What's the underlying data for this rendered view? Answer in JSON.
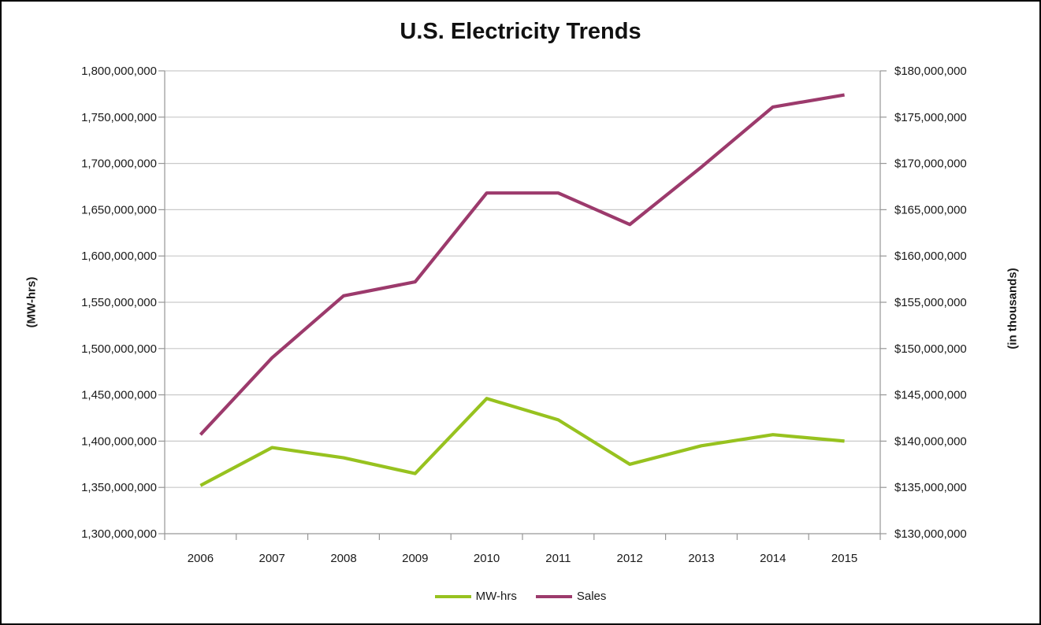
{
  "chart": {
    "title": "U.S. Electricity Trends",
    "left_axis": {
      "title": "(MW-hrs)",
      "tick_labels": [
        "1,800,000,000",
        "1,750,000,000",
        "1,700,000,000",
        "1,650,000,000",
        "1,600,000,000",
        "1,550,000,000",
        "1,500,000,000",
        "1,450,000,000",
        "1,400,000,000",
        "1,350,000,000",
        "1,300,000,000"
      ]
    },
    "right_axis": {
      "title": "(in thousands)",
      "tick_labels": [
        "$180,000,000",
        "$175,000,000",
        "$170,000,000",
        "$165,000,000",
        "$160,000,000",
        "$155,000,000",
        "$150,000,000",
        "$145,000,000",
        "$140,000,000",
        "$135,000,000",
        "$130,000,000"
      ]
    },
    "x_axis": {
      "tick_labels": [
        "2006",
        "2007",
        "2008",
        "2009",
        "2010",
        "2011",
        "2012",
        "2013",
        "2014",
        "2015"
      ]
    },
    "legend": {
      "items": [
        {
          "label": "MW-hrs",
          "color": "#97C21F"
        },
        {
          "label": "Sales",
          "color": "#9C3A6C"
        }
      ]
    },
    "colors": {
      "grid": "#C9C9C9",
      "axis": "#969696",
      "text": "#1A1A1A",
      "mw_hrs_line": "#97C21F",
      "sales_line": "#9C3A6C"
    }
  },
  "chart_data": {
    "type": "line",
    "title": "U.S. Electricity Trends",
    "categories": [
      "2006",
      "2007",
      "2008",
      "2009",
      "2010",
      "2011",
      "2012",
      "2013",
      "2014",
      "2015"
    ],
    "series": [
      {
        "name": "MW-hrs",
        "axis": "left",
        "color": "#97C21F",
        "values": [
          1352000000,
          1393000000,
          1382000000,
          1365000000,
          1446000000,
          1423000000,
          1375000000,
          1395000000,
          1407000000,
          1400000000
        ]
      },
      {
        "name": "Sales",
        "axis": "right",
        "color": "#9C3A6C",
        "values": [
          140700000,
          149000000,
          155700000,
          157200000,
          166800000,
          166800000,
          163400000,
          169600000,
          176100000,
          177400000
        ]
      }
    ],
    "left_axis": {
      "label": "(MW-hrs)",
      "min": 1300000000,
      "max": 1800000000,
      "step": 50000000
    },
    "right_axis": {
      "label": "(in thousands)",
      "min": 130000000,
      "max": 180000000,
      "step": 5000000,
      "unit": "USD thousands"
    },
    "grid": true,
    "legend_position": "bottom"
  }
}
